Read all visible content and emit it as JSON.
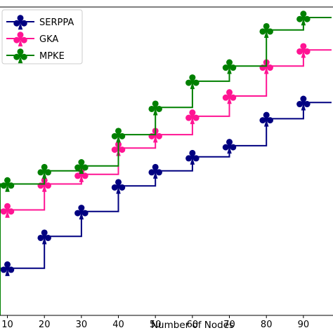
{
  "chart_data": {
    "type": "line",
    "step": "post",
    "title": "",
    "xlabel": "Number of Nodes",
    "ylabel": "",
    "x": [
      10,
      20,
      30,
      40,
      50,
      60,
      70,
      80,
      90
    ],
    "xticks": [
      "10",
      "20",
      "30",
      "40",
      "50",
      "60",
      "70",
      "80",
      "90"
    ],
    "xlim": [
      8,
      98
    ],
    "ylim": [
      0,
      1
    ],
    "grid": false,
    "legend_position": "top-left",
    "marker": "club",
    "series": [
      {
        "name": "SERPPA",
        "color": "#000080",
        "values": [
          0.071,
          0.189,
          0.281,
          0.376,
          0.432,
          0.484,
          0.525,
          0.625,
          0.685
        ]
      },
      {
        "name": "GKA",
        "color": "#ff1493",
        "values": [
          0.287,
          0.383,
          0.419,
          0.516,
          0.566,
          0.634,
          0.709,
          0.82,
          0.88
        ]
      },
      {
        "name": "MPKE",
        "color": "#008000",
        "values": [
          0.383,
          0.432,
          0.45,
          0.566,
          0.667,
          0.764,
          0.82,
          0.954,
          1.0
        ]
      }
    ]
  }
}
